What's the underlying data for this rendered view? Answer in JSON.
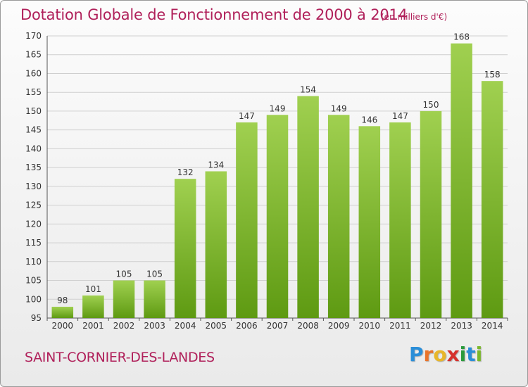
{
  "title": "Dotation Globale de Fonctionnement de 2000 à 2014",
  "unit_note": "(en milliers d'€)",
  "commune": "SAINT-CORNIER-DES-LANDES",
  "logo": {
    "text": "Proxiti",
    "letters": [
      {
        "ch": "P",
        "color": "#2a8ed8"
      },
      {
        "ch": "r",
        "color": "#e8732a"
      },
      {
        "ch": "o",
        "color": "#e8b62a"
      },
      {
        "ch": "x",
        "color": "#d6302c"
      },
      {
        "ch": "i",
        "color": "#2a9a3c"
      },
      {
        "ch": "t",
        "color": "#2a8ed8"
      },
      {
        "ch": "i",
        "color": "#7ab82a"
      }
    ]
  },
  "colors": {
    "bar_top": "#a0d050",
    "bar_bottom": "#5e9a12",
    "grid": "#cfcfcf",
    "accent": "#b0205a"
  },
  "chart_data": {
    "type": "bar",
    "categories": [
      "2000",
      "2001",
      "2002",
      "2003",
      "2004",
      "2005",
      "2006",
      "2007",
      "2008",
      "2009",
      "2010",
      "2011",
      "2012",
      "2013",
      "2014"
    ],
    "values": [
      98,
      101,
      105,
      105,
      132,
      134,
      147,
      149,
      154,
      149,
      146,
      147,
      150,
      168,
      158
    ],
    "ylim": [
      95,
      170
    ],
    "yticks": [
      95,
      100,
      105,
      110,
      115,
      120,
      125,
      130,
      135,
      140,
      145,
      150,
      155,
      160,
      165,
      170
    ],
    "grid": true,
    "legend": "none"
  }
}
